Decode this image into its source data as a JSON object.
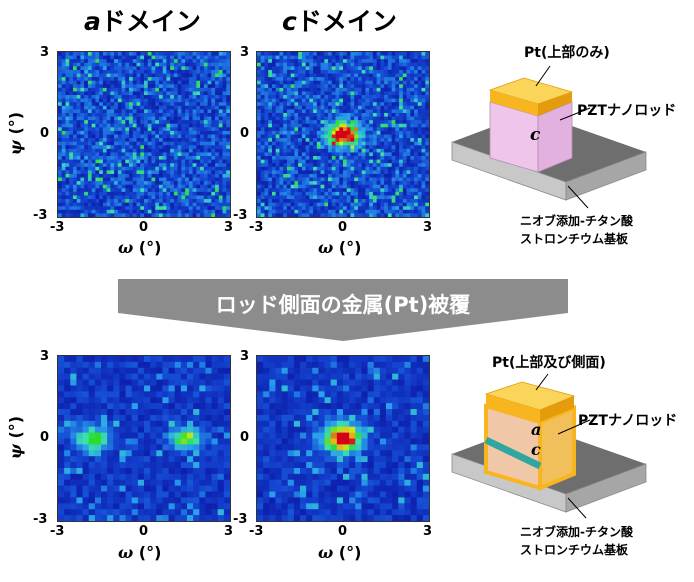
{
  "colors": {
    "map_low": "#0b1aa8",
    "map_mid": "#2aa7e8",
    "map_peak_green": "#1fdc2a",
    "map_peak_red": "#d80018",
    "banner": "#8c8c8c",
    "pt": "#f7b51f",
    "pzt": "#f0c5ec",
    "substrate": "#6e6e6e"
  },
  "columns": {
    "a_title_italic": "a",
    "a_title_rest": "ドメイン",
    "c_title_italic": "c",
    "c_title_rest": "ドメイン"
  },
  "axes": {
    "x_symbol": "ω",
    "x_unit": " (°)",
    "y_symbol": "ψ",
    "y_unit": " (°)",
    "x_ticks": [
      "-3",
      "0",
      "3"
    ],
    "y_ticks": [
      "3",
      "0",
      "-3"
    ]
  },
  "banner": {
    "text": "ロッド側面の金属(Pt)被覆"
  },
  "diagram_top": {
    "pt_label": "Pt(上部のみ)",
    "rod_label": "PZTナノロッド",
    "c_letter": "c",
    "substrate_line1": "ニオブ添加-チタン酸",
    "substrate_line2": "ストロンチウム基板"
  },
  "diagram_bottom": {
    "pt_label": "Pt(上部及び側面)",
    "rod_label": "PZTナノロッド",
    "a_letter": "a",
    "c_letter": "c",
    "substrate_line1": "ニオブ添加-チタン酸",
    "substrate_line2": "ストロンチウム基板"
  },
  "chart_data": [
    {
      "type": "heatmap",
      "title": "aドメイン",
      "xlabel": "ω (°)",
      "ylabel": "ψ (°)",
      "xlim": [
        -3,
        3
      ],
      "ylim": [
        -3,
        3
      ],
      "peaks": []
    },
    {
      "type": "heatmap",
      "title": "cドメイン",
      "xlabel": "ω (°)",
      "ylabel": "ψ (°)",
      "xlim": [
        -3,
        3
      ],
      "ylim": [
        -3,
        3
      ],
      "peaks": [
        {
          "x": 0,
          "y": 0
        }
      ]
    },
    {
      "type": "heatmap",
      "title": "aドメイン",
      "xlabel": "ω (°)",
      "ylabel": "ψ (°)",
      "xlim": [
        -3,
        3
      ],
      "ylim": [
        -3,
        3
      ],
      "peaks": [
        {
          "x": -1.8,
          "y": 0
        },
        {
          "x": 1.5,
          "y": 0
        }
      ]
    },
    {
      "type": "heatmap",
      "title": "cドメイン",
      "xlabel": "ω (°)",
      "ylabel": "ψ (°)",
      "xlim": [
        -3,
        3
      ],
      "ylim": [
        -3,
        3
      ],
      "peaks": [
        {
          "x": 0,
          "y": 0
        }
      ]
    }
  ]
}
